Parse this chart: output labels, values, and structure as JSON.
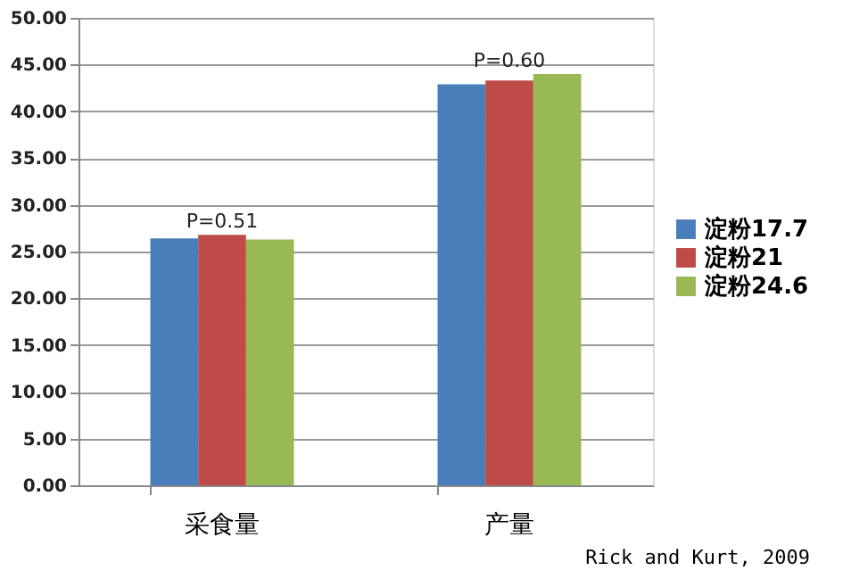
{
  "chart_data": {
    "type": "bar",
    "categories": [
      "采食量",
      "产量"
    ],
    "series": [
      {
        "name": "淀粉17.7",
        "color": "#4a7ebb",
        "values": [
          26.4,
          42.9
        ]
      },
      {
        "name": "淀粉21",
        "color": "#be4b48",
        "values": [
          26.8,
          43.3
        ]
      },
      {
        "name": "淀粉24.6",
        "color": "#98b954",
        "values": [
          26.3,
          44.0
        ]
      }
    ],
    "ylim": [
      0,
      50
    ],
    "yticks": [
      {
        "value": 0,
        "label": "0.00"
      },
      {
        "value": 5,
        "label": "5.00"
      },
      {
        "value": 10,
        "label": "10.00"
      },
      {
        "value": 15,
        "label": "15.00"
      },
      {
        "value": 20,
        "label": "20.00"
      },
      {
        "value": 25,
        "label": "25.00"
      },
      {
        "value": 30,
        "label": "30.00"
      },
      {
        "value": 35,
        "label": "35.00"
      },
      {
        "value": 40,
        "label": "40.00"
      },
      {
        "value": 45,
        "label": "45.00"
      },
      {
        "value": 50,
        "label": "50.00"
      }
    ],
    "annotations": [
      "P=0.51",
      "P=0.60",
      "Rick and Kurt, 2009"
    ],
    "grid": "y",
    "legend": "right"
  }
}
